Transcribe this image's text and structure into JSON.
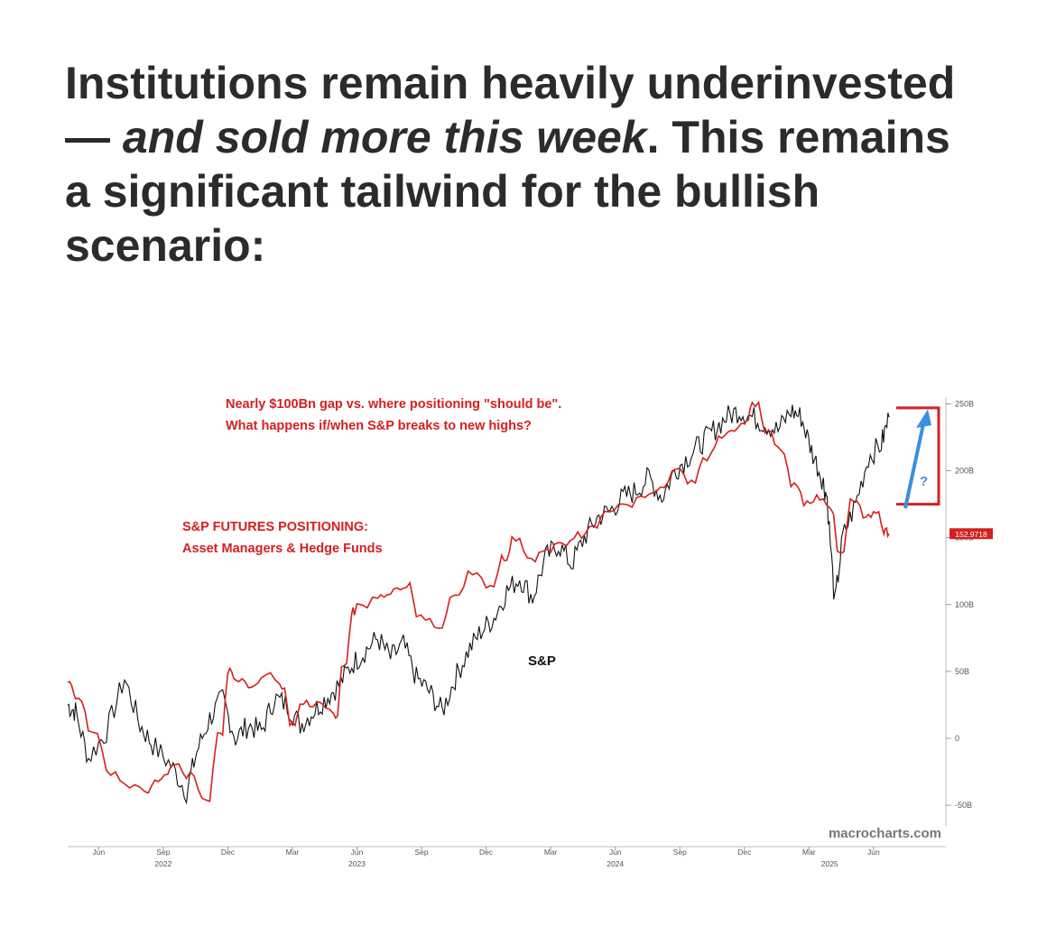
{
  "headline": {
    "part1": "Institutions remain heavily underinvested — ",
    "emphasis": "and sold more this week",
    "part2": ". This remains a significant tailwind for the bullish scenario:"
  },
  "chart_data": {
    "type": "line",
    "annotations": {
      "gap_line1": "Nearly $100Bn gap vs. where positioning \"should be\".",
      "gap_line2": "What happens if/when S&P breaks to new highs?",
      "positioning_line1": "S&P FUTURES POSITIONING:",
      "positioning_line2": "Asset Managers & Hedge Funds",
      "sp_label": "S&P",
      "question_mark": "?",
      "watermark": "macrocharts.com"
    },
    "y_axis": {
      "ticks": [
        "250B",
        "200B",
        "150B",
        "100B",
        "50B",
        "0",
        "-50B"
      ],
      "tick_values": [
        250,
        200,
        150,
        100,
        50,
        0,
        -50
      ],
      "ylim": [
        -60,
        255
      ],
      "last_value_label": "152.9718",
      "last_value": 152.97
    },
    "x_axis": {
      "month_labels": [
        "Jun",
        "Sep",
        "Dec",
        "Mar",
        "Jun",
        "Sep",
        "Dec",
        "Mar",
        "Jun",
        "Sep",
        "Dec",
        "Mar",
        "Jun"
      ],
      "month_values": [
        2022.42,
        2022.67,
        2022.92,
        2023.17,
        2023.42,
        2023.67,
        2023.92,
        2024.17,
        2024.42,
        2024.67,
        2024.92,
        2025.17,
        2025.42
      ],
      "year_labels": [
        "2022",
        "2023",
        "2024",
        "2025"
      ],
      "year_values": [
        2022.67,
        2023.42,
        2024.42,
        2025.25
      ],
      "xlim": [
        2022.3,
        2025.7
      ]
    },
    "series": [
      {
        "color": "#d42020",
        "x": [
          2022.3,
          2022.33,
          2022.38,
          2022.45,
          2022.52,
          2022.6,
          2022.65,
          2022.7,
          2022.76,
          2022.82,
          2022.88,
          2022.92,
          2022.95,
          2023.0,
          2023.05,
          2023.12,
          2023.16,
          2023.2,
          2023.25,
          2023.3,
          2023.33,
          2023.36,
          2023.4,
          2023.42,
          2023.5,
          2023.55,
          2023.6,
          2023.65,
          2023.72,
          2023.78,
          2023.85,
          2023.92,
          2023.98,
          2024.02,
          2024.08,
          2024.14,
          2024.2,
          2024.26,
          2024.32,
          2024.38,
          2024.45,
          2024.52,
          2024.58,
          2024.64,
          2024.7,
          2024.76,
          2024.82,
          2024.87,
          2024.92,
          2024.95,
          2025.0,
          2025.05,
          2025.1,
          2025.15,
          2025.2,
          2025.25,
          2025.28,
          2025.33,
          2025.38,
          2025.42,
          2025.46,
          2025.48
        ],
        "y": [
          42,
          30,
          5,
          -25,
          -35,
          -38,
          -30,
          -20,
          -28,
          -45,
          5,
          50,
          43,
          40,
          48,
          38,
          10,
          27,
          25,
          20,
          18,
          55,
          95,
          100,
          105,
          110,
          115,
          90,
          85,
          105,
          125,
          115,
          135,
          150,
          135,
          140,
          145,
          152,
          160,
          170,
          175,
          180,
          185,
          200,
          190,
          210,
          225,
          230,
          238,
          250,
          230,
          215,
          190,
          175,
          180,
          170,
          140,
          180,
          165,
          170,
          155,
          152.97
        ]
      },
      {
        "name": "S&P",
        "color": "#111111",
        "x": [
          2022.3,
          2022.33,
          2022.38,
          2022.45,
          2022.52,
          2022.58,
          2022.63,
          2022.7,
          2022.76,
          2022.8,
          2022.85,
          2022.9,
          2022.95,
          2023.0,
          2023.05,
          2023.1,
          2023.15,
          2023.2,
          2023.25,
          2023.3,
          2023.35,
          2023.4,
          2023.45,
          2023.5,
          2023.55,
          2023.6,
          2023.65,
          2023.7,
          2023.75,
          2023.8,
          2023.85,
          2023.9,
          2023.95,
          2024.0,
          2024.05,
          2024.1,
          2024.15,
          2024.2,
          2024.25,
          2024.3,
          2024.35,
          2024.4,
          2024.45,
          2024.5,
          2024.55,
          2024.6,
          2024.65,
          2024.7,
          2024.75,
          2024.8,
          2024.85,
          2024.9,
          2024.95,
          2025.0,
          2025.05,
          2025.1,
          2025.14,
          2025.18,
          2025.22,
          2025.24,
          2025.27,
          2025.3,
          2025.35,
          2025.4,
          2025.45,
          2025.48
        ],
        "y": [
          25,
          20,
          -15,
          5,
          45,
          10,
          -5,
          -20,
          -40,
          -10,
          15,
          30,
          0,
          10,
          5,
          30,
          25,
          10,
          20,
          30,
          40,
          55,
          65,
          75,
          60,
          70,
          45,
          35,
          20,
          45,
          65,
          80,
          90,
          110,
          120,
          105,
          135,
          145,
          130,
          150,
          165,
          170,
          180,
          185,
          195,
          180,
          200,
          210,
          220,
          230,
          240,
          245,
          240,
          235,
          230,
          245,
          240,
          215,
          195,
          180,
          100,
          150,
          175,
          210,
          220,
          240
        ]
      }
    ]
  }
}
